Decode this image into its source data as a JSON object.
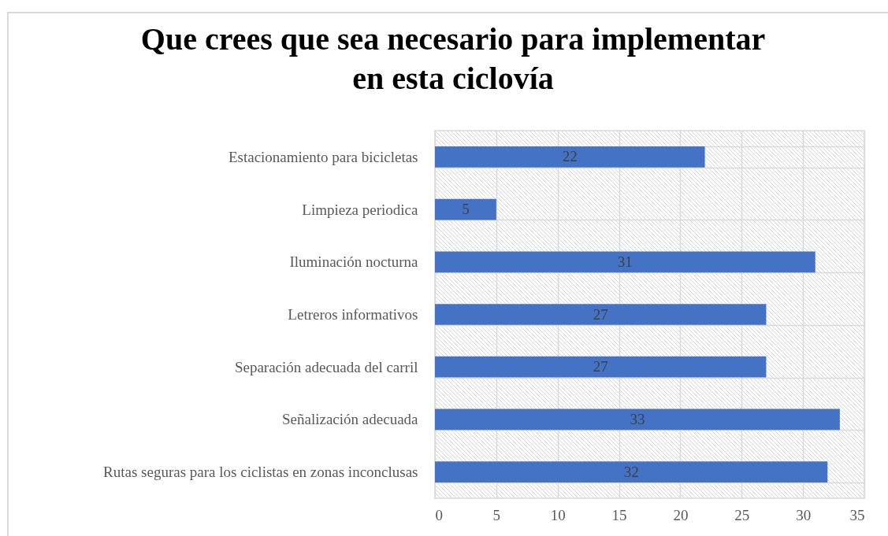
{
  "chart_data": {
    "type": "bar",
    "orientation": "horizontal",
    "title": "Que crees que sea necesario para implementar\nen esta ciclovía",
    "categories": [
      "Estacionamiento para bicicletas",
      "Limpieza periodica",
      "Iluminación nocturna",
      "Letreros informativos",
      "Separación adecuada del carril",
      "Señalización adecuada",
      "Rutas seguras para los ciclistas en zonas inconclusas"
    ],
    "values": [
      22,
      5,
      31,
      27,
      27,
      33,
      32
    ],
    "color": "#4472c4",
    "xlim": [
      0,
      35
    ],
    "xticks": [
      0,
      5,
      10,
      15,
      20,
      25,
      30,
      35
    ],
    "grid": true,
    "data_labels": true
  }
}
